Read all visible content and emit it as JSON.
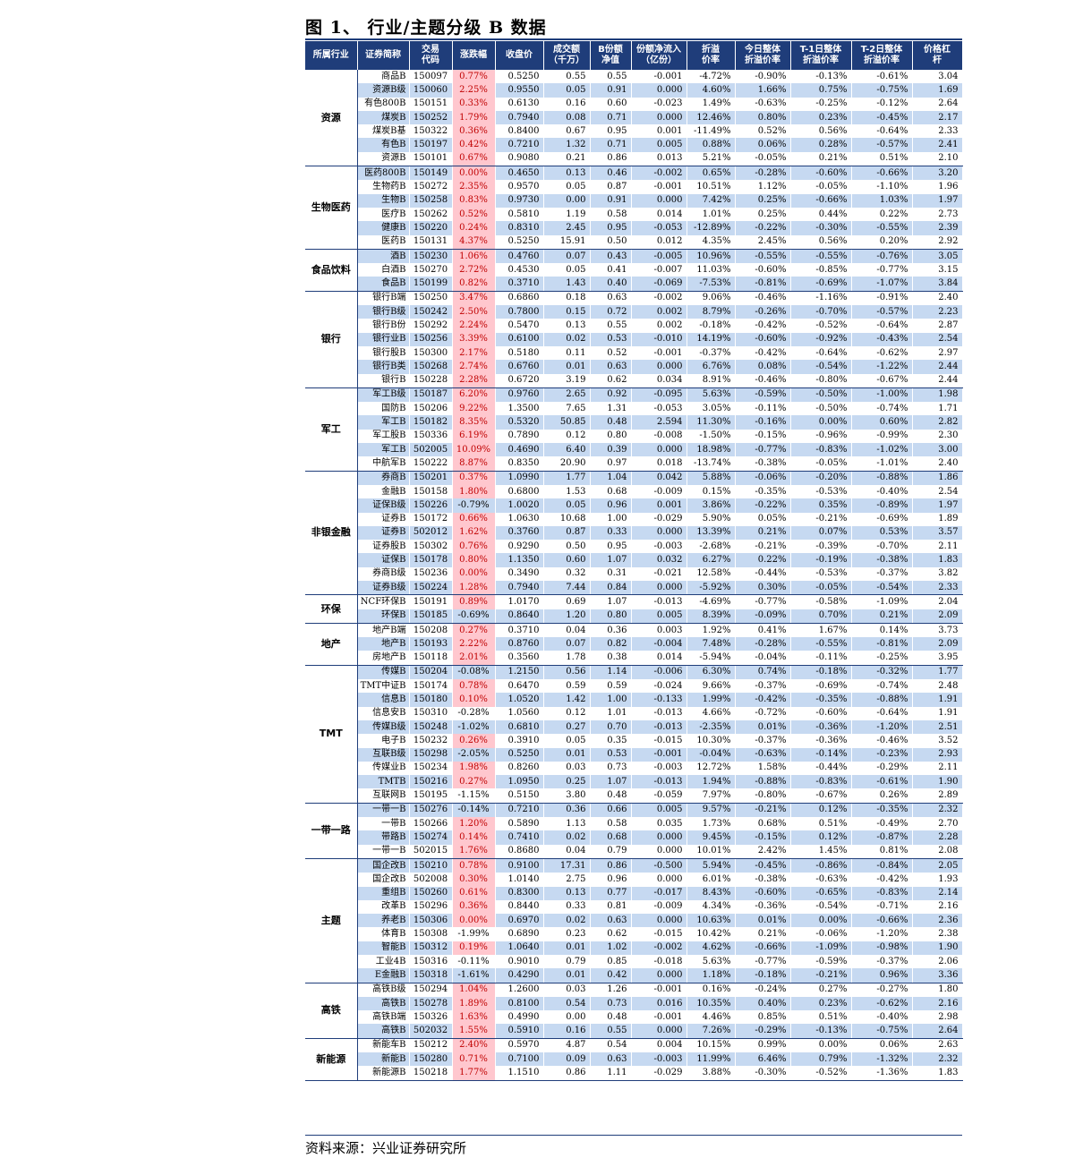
{
  "title": "图 1、 行业/主题分级 B 数据",
  "source": "资料来源：兴业证券研究所",
  "colors": {
    "header_bg": "#1f3d7a",
    "band": "#c6d9f1",
    "up_bg": "#ffc7ce",
    "up_text": "#c00000"
  },
  "headers": [
    "所属行业",
    "证券简称",
    "交易\n代码",
    "涨跌幅",
    "收盘价",
    "成交额\n（千万）",
    "B份额\n净值",
    "份额净流入\n（亿份）",
    "折溢\n价率",
    "今日整体\n折溢价率",
    "T-1日整体\n折溢价率",
    "T-2日整体\n折溢价率",
    "价格杠\n杆"
  ],
  "groups": [
    {
      "industry": "资源",
      "rows": [
        [
          "商品B",
          "150097",
          "0.77%",
          "0.5250",
          "0.55",
          "0.55",
          "-0.001",
          "-4.72%",
          "-0.90%",
          "-0.13%",
          "-0.61%",
          "3.04"
        ],
        [
          "资源B级",
          "150060",
          "2.25%",
          "0.9550",
          "0.05",
          "0.91",
          "0.000",
          "4.60%",
          "1.66%",
          "0.75%",
          "-0.75%",
          "1.69"
        ],
        [
          "有色800B",
          "150151",
          "0.33%",
          "0.6130",
          "0.16",
          "0.60",
          "-0.023",
          "1.49%",
          "-0.63%",
          "-0.25%",
          "-0.12%",
          "2.64"
        ],
        [
          "煤炭B",
          "150252",
          "1.79%",
          "0.7940",
          "0.08",
          "0.71",
          "0.000",
          "12.46%",
          "0.80%",
          "0.23%",
          "-0.45%",
          "2.17"
        ],
        [
          "煤炭B基",
          "150322",
          "0.36%",
          "0.8400",
          "0.67",
          "0.95",
          "0.001",
          "-11.49%",
          "0.52%",
          "0.56%",
          "-0.64%",
          "2.33"
        ],
        [
          "有色B",
          "150197",
          "0.42%",
          "0.7210",
          "1.32",
          "0.71",
          "0.005",
          "0.88%",
          "0.06%",
          "0.28%",
          "-0.57%",
          "2.41"
        ],
        [
          "资源B",
          "150101",
          "0.67%",
          "0.9080",
          "0.21",
          "0.86",
          "0.013",
          "5.21%",
          "-0.05%",
          "0.21%",
          "0.51%",
          "2.10"
        ]
      ]
    },
    {
      "industry": "生物医药",
      "rows": [
        [
          "医药800B",
          "150149",
          "0.00%",
          "0.4650",
          "0.13",
          "0.46",
          "-0.002",
          "0.65%",
          "-0.28%",
          "-0.60%",
          "-0.66%",
          "3.20"
        ],
        [
          "生物药B",
          "150272",
          "2.35%",
          "0.9570",
          "0.05",
          "0.87",
          "-0.001",
          "10.51%",
          "1.12%",
          "-0.05%",
          "-1.10%",
          "1.96"
        ],
        [
          "生物B",
          "150258",
          "0.83%",
          "0.9730",
          "0.00",
          "0.91",
          "0.000",
          "7.42%",
          "0.25%",
          "-0.66%",
          "1.03%",
          "1.97"
        ],
        [
          "医疗B",
          "150262",
          "0.52%",
          "0.5810",
          "1.19",
          "0.58",
          "0.014",
          "1.01%",
          "0.25%",
          "0.44%",
          "0.22%",
          "2.73"
        ],
        [
          "健康B",
          "150220",
          "0.24%",
          "0.8310",
          "2.45",
          "0.95",
          "-0.053",
          "-12.89%",
          "-0.22%",
          "-0.30%",
          "-0.55%",
          "2.39"
        ],
        [
          "医药B",
          "150131",
          "4.37%",
          "0.5250",
          "15.91",
          "0.50",
          "0.012",
          "4.35%",
          "2.45%",
          "0.56%",
          "0.20%",
          "2.92"
        ]
      ]
    },
    {
      "industry": "食品饮料",
      "rows": [
        [
          "酒B",
          "150230",
          "1.06%",
          "0.4760",
          "0.07",
          "0.43",
          "-0.005",
          "10.96%",
          "-0.55%",
          "-0.55%",
          "-0.76%",
          "3.05"
        ],
        [
          "白酒B",
          "150270",
          "2.72%",
          "0.4530",
          "0.05",
          "0.41",
          "-0.007",
          "11.03%",
          "-0.60%",
          "-0.85%",
          "-0.77%",
          "3.15"
        ],
        [
          "食品B",
          "150199",
          "0.82%",
          "0.3710",
          "1.43",
          "0.40",
          "-0.069",
          "-7.53%",
          "-0.81%",
          "-0.69%",
          "-1.07%",
          "3.84"
        ]
      ]
    },
    {
      "industry": "银行",
      "rows": [
        [
          "银行B端",
          "150250",
          "3.47%",
          "0.6860",
          "0.18",
          "0.63",
          "-0.002",
          "9.06%",
          "-0.46%",
          "-1.16%",
          "-0.91%",
          "2.40"
        ],
        [
          "银行B级",
          "150242",
          "2.50%",
          "0.7800",
          "0.15",
          "0.72",
          "0.002",
          "8.79%",
          "-0.26%",
          "-0.70%",
          "-0.57%",
          "2.23"
        ],
        [
          "银行B份",
          "150292",
          "2.24%",
          "0.5470",
          "0.13",
          "0.55",
          "0.002",
          "-0.18%",
          "-0.42%",
          "-0.52%",
          "-0.64%",
          "2.87"
        ],
        [
          "银行业B",
          "150256",
          "3.39%",
          "0.6100",
          "0.02",
          "0.53",
          "-0.010",
          "14.19%",
          "-0.60%",
          "-0.92%",
          "-0.43%",
          "2.54"
        ],
        [
          "银行股B",
          "150300",
          "2.17%",
          "0.5180",
          "0.11",
          "0.52",
          "-0.001",
          "-0.37%",
          "-0.42%",
          "-0.64%",
          "-0.62%",
          "2.97"
        ],
        [
          "银行B类",
          "150268",
          "2.74%",
          "0.6760",
          "0.01",
          "0.63",
          "0.000",
          "6.76%",
          "0.08%",
          "-0.54%",
          "-1.22%",
          "2.44"
        ],
        [
          "银行B",
          "150228",
          "2.28%",
          "0.6720",
          "3.19",
          "0.62",
          "0.034",
          "8.91%",
          "-0.46%",
          "-0.80%",
          "-0.67%",
          "2.44"
        ]
      ]
    },
    {
      "industry": "军工",
      "rows": [
        [
          "军工B级",
          "150187",
          "6.20%",
          "0.9760",
          "2.65",
          "0.92",
          "-0.095",
          "5.63%",
          "-0.59%",
          "-0.50%",
          "-1.00%",
          "1.98"
        ],
        [
          "国防B",
          "150206",
          "9.22%",
          "1.3500",
          "7.65",
          "1.31",
          "-0.053",
          "3.05%",
          "-0.11%",
          "-0.50%",
          "-0.74%",
          "1.71"
        ],
        [
          "军工B",
          "150182",
          "8.35%",
          "0.5320",
          "50.85",
          "0.48",
          "2.594",
          "11.30%",
          "-0.16%",
          "0.00%",
          "0.60%",
          "2.82"
        ],
        [
          "军工股B",
          "150336",
          "6.19%",
          "0.7890",
          "0.12",
          "0.80",
          "-0.008",
          "-1.50%",
          "-0.15%",
          "-0.96%",
          "-0.99%",
          "2.30"
        ],
        [
          "军工B",
          "502005",
          "10.09%",
          "0.4690",
          "6.40",
          "0.39",
          "0.000",
          "18.98%",
          "-0.77%",
          "-0.83%",
          "-1.02%",
          "3.00"
        ],
        [
          "中航军B",
          "150222",
          "8.87%",
          "0.8350",
          "20.90",
          "0.97",
          "0.018",
          "-13.74%",
          "-0.38%",
          "-0.05%",
          "-1.01%",
          "2.40"
        ]
      ]
    },
    {
      "industry": "非银金融",
      "rows": [
        [
          "券商B",
          "150201",
          "0.37%",
          "1.0990",
          "1.77",
          "1.04",
          "0.042",
          "5.88%",
          "-0.06%",
          "-0.20%",
          "-0.88%",
          "1.86"
        ],
        [
          "金融B",
          "150158",
          "1.80%",
          "0.6800",
          "1.53",
          "0.68",
          "-0.009",
          "0.15%",
          "-0.35%",
          "-0.53%",
          "-0.40%",
          "2.54"
        ],
        [
          "证保B级",
          "150226",
          "-0.79%",
          "1.0020",
          "0.05",
          "0.96",
          "0.001",
          "3.86%",
          "-0.22%",
          "0.35%",
          "-0.89%",
          "1.97"
        ],
        [
          "证券B",
          "150172",
          "0.66%",
          "1.0630",
          "10.68",
          "1.00",
          "-0.029",
          "5.90%",
          "0.05%",
          "-0.21%",
          "-0.69%",
          "1.89"
        ],
        [
          "证券B",
          "502012",
          "1.62%",
          "0.3760",
          "0.87",
          "0.33",
          "0.000",
          "13.39%",
          "0.21%",
          "0.07%",
          "0.53%",
          "3.57"
        ],
        [
          "证券股B",
          "150302",
          "0.76%",
          "0.9290",
          "0.50",
          "0.95",
          "-0.003",
          "-2.68%",
          "-0.21%",
          "-0.39%",
          "-0.70%",
          "2.11"
        ],
        [
          "证保B",
          "150178",
          "0.80%",
          "1.1350",
          "0.60",
          "1.07",
          "0.032",
          "6.27%",
          "0.22%",
          "-0.19%",
          "-0.38%",
          "1.83"
        ],
        [
          "券商B级",
          "150236",
          "0.00%",
          "0.3490",
          "0.32",
          "0.31",
          "-0.021",
          "12.58%",
          "-0.44%",
          "-0.53%",
          "-0.37%",
          "3.82"
        ],
        [
          "证券B级",
          "150224",
          "1.28%",
          "0.7940",
          "7.44",
          "0.84",
          "0.000",
          "-5.92%",
          "0.30%",
          "-0.05%",
          "-0.54%",
          "2.33"
        ]
      ]
    },
    {
      "industry": "环保",
      "rows": [
        [
          "NCF环保B",
          "150191",
          "0.89%",
          "1.0170",
          "0.69",
          "1.07",
          "-0.013",
          "-4.69%",
          "-0.77%",
          "-0.58%",
          "-1.09%",
          "2.04"
        ],
        [
          "环保B",
          "150185",
          "-0.69%",
          "0.8640",
          "1.20",
          "0.80",
          "0.005",
          "8.39%",
          "-0.09%",
          "0.70%",
          "0.21%",
          "2.09"
        ]
      ]
    },
    {
      "industry": "地产",
      "rows": [
        [
          "地产B端",
          "150208",
          "0.27%",
          "0.3710",
          "0.04",
          "0.36",
          "0.003",
          "1.92%",
          "0.41%",
          "1.67%",
          "0.14%",
          "3.73"
        ],
        [
          "地产B",
          "150193",
          "2.22%",
          "0.8760",
          "0.07",
          "0.82",
          "-0.004",
          "7.48%",
          "-0.28%",
          "-0.55%",
          "-0.81%",
          "2.09"
        ],
        [
          "房地产B",
          "150118",
          "2.01%",
          "0.3560",
          "1.78",
          "0.38",
          "0.014",
          "-5.94%",
          "-0.04%",
          "-0.11%",
          "-0.25%",
          "3.95"
        ]
      ]
    },
    {
      "industry": "TMT",
      "rows": [
        [
          "传媒B",
          "150204",
          "-0.08%",
          "1.2150",
          "0.56",
          "1.14",
          "-0.006",
          "6.30%",
          "0.74%",
          "-0.18%",
          "-0.32%",
          "1.77"
        ],
        [
          "TMT中证B",
          "150174",
          "0.78%",
          "0.6470",
          "0.59",
          "0.59",
          "-0.024",
          "9.66%",
          "-0.37%",
          "-0.69%",
          "-0.74%",
          "2.48"
        ],
        [
          "信息B",
          "150180",
          "0.10%",
          "1.0520",
          "1.42",
          "1.00",
          "-0.133",
          "1.99%",
          "-0.42%",
          "-0.35%",
          "-0.88%",
          "1.91"
        ],
        [
          "信息安B",
          "150310",
          "-0.28%",
          "1.0560",
          "0.12",
          "1.01",
          "-0.013",
          "4.66%",
          "-0.72%",
          "-0.60%",
          "-0.64%",
          "1.91"
        ],
        [
          "传媒B级",
          "150248",
          "-1.02%",
          "0.6810",
          "0.27",
          "0.70",
          "-0.013",
          "-2.35%",
          "0.01%",
          "-0.36%",
          "-1.20%",
          "2.51"
        ],
        [
          "电子B",
          "150232",
          "0.26%",
          "0.3910",
          "0.05",
          "0.35",
          "-0.015",
          "10.30%",
          "-0.37%",
          "-0.36%",
          "-0.46%",
          "3.52"
        ],
        [
          "互联B级",
          "150298",
          "-2.05%",
          "0.5250",
          "0.01",
          "0.53",
          "-0.001",
          "-0.04%",
          "-0.63%",
          "-0.14%",
          "-0.23%",
          "2.93"
        ],
        [
          "传媒业B",
          "150234",
          "1.98%",
          "0.8260",
          "0.03",
          "0.73",
          "-0.003",
          "12.72%",
          "1.58%",
          "-0.44%",
          "-0.29%",
          "2.11"
        ],
        [
          "TMTB",
          "150216",
          "0.27%",
          "1.0950",
          "0.25",
          "1.07",
          "-0.013",
          "1.94%",
          "-0.88%",
          "-0.83%",
          "-0.61%",
          "1.90"
        ],
        [
          "互联网B",
          "150195",
          "-1.15%",
          "0.5150",
          "3.80",
          "0.48",
          "-0.059",
          "7.97%",
          "-0.80%",
          "-0.67%",
          "0.26%",
          "2.89"
        ]
      ]
    },
    {
      "industry": "一带一路",
      "rows": [
        [
          "一带一B",
          "150276",
          "-0.14%",
          "0.7210",
          "0.36",
          "0.66",
          "0.005",
          "9.57%",
          "-0.21%",
          "0.12%",
          "-0.35%",
          "2.32"
        ],
        [
          "一带B",
          "150266",
          "1.20%",
          "0.5890",
          "1.13",
          "0.58",
          "0.035",
          "1.73%",
          "0.68%",
          "0.51%",
          "-0.49%",
          "2.70"
        ],
        [
          "带路B",
          "150274",
          "0.14%",
          "0.7410",
          "0.02",
          "0.68",
          "0.000",
          "9.45%",
          "-0.15%",
          "0.12%",
          "-0.87%",
          "2.28"
        ],
        [
          "一带一B",
          "502015",
          "1.76%",
          "0.8680",
          "0.04",
          "0.79",
          "0.000",
          "10.01%",
          "2.42%",
          "1.45%",
          "0.81%",
          "2.08"
        ]
      ]
    },
    {
      "industry": "主题",
      "rows": [
        [
          "国企改B",
          "150210",
          "0.78%",
          "0.9100",
          "17.31",
          "0.86",
          "-0.500",
          "5.94%",
          "-0.45%",
          "-0.86%",
          "-0.84%",
          "2.05"
        ],
        [
          "国企改B",
          "502008",
          "0.30%",
          "1.0140",
          "2.75",
          "0.96",
          "0.000",
          "6.01%",
          "-0.38%",
          "-0.63%",
          "-0.42%",
          "1.93"
        ],
        [
          "重组B",
          "150260",
          "0.61%",
          "0.8300",
          "0.13",
          "0.77",
          "-0.017",
          "8.43%",
          "-0.60%",
          "-0.65%",
          "-0.83%",
          "2.14"
        ],
        [
          "改革B",
          "150296",
          "0.36%",
          "0.8440",
          "0.33",
          "0.81",
          "-0.009",
          "4.34%",
          "-0.36%",
          "-0.54%",
          "-0.71%",
          "2.16"
        ],
        [
          "养老B",
          "150306",
          "0.00%",
          "0.6970",
          "0.02",
          "0.63",
          "0.000",
          "10.63%",
          "0.01%",
          "0.00%",
          "-0.66%",
          "2.36"
        ],
        [
          "体育B",
          "150308",
          "-1.99%",
          "0.6890",
          "0.23",
          "0.62",
          "-0.015",
          "10.42%",
          "0.21%",
          "-0.06%",
          "-1.20%",
          "2.38"
        ],
        [
          "智能B",
          "150312",
          "0.19%",
          "1.0640",
          "0.01",
          "1.02",
          "-0.002",
          "4.62%",
          "-0.66%",
          "-1.09%",
          "-0.98%",
          "1.90"
        ],
        [
          "工业4B",
          "150316",
          "-0.11%",
          "0.9010",
          "0.79",
          "0.85",
          "-0.018",
          "5.63%",
          "-0.77%",
          "-0.59%",
          "-0.37%",
          "2.06"
        ],
        [
          "E金融B",
          "150318",
          "-1.61%",
          "0.4290",
          "0.01",
          "0.42",
          "0.000",
          "1.18%",
          "-0.18%",
          "-0.21%",
          "0.96%",
          "3.36"
        ]
      ]
    },
    {
      "industry": "高铁",
      "rows": [
        [
          "高铁B级",
          "150294",
          "1.04%",
          "1.2600",
          "0.03",
          "1.26",
          "-0.001",
          "0.16%",
          "-0.24%",
          "0.27%",
          "-0.27%",
          "1.80"
        ],
        [
          "高铁B",
          "150278",
          "1.89%",
          "0.8100",
          "0.54",
          "0.73",
          "0.016",
          "10.35%",
          "0.40%",
          "0.23%",
          "-0.62%",
          "2.16"
        ],
        [
          "高铁B端",
          "150326",
          "1.63%",
          "0.4990",
          "0.00",
          "0.48",
          "-0.001",
          "4.46%",
          "0.85%",
          "0.51%",
          "-0.40%",
          "2.98"
        ],
        [
          "高铁B",
          "502032",
          "1.55%",
          "0.5910",
          "0.16",
          "0.55",
          "0.000",
          "7.26%",
          "-0.29%",
          "-0.13%",
          "-0.75%",
          "2.64"
        ]
      ]
    },
    {
      "industry": "新能源",
      "rows": [
        [
          "新能车B",
          "150212",
          "2.40%",
          "0.5970",
          "4.87",
          "0.54",
          "0.004",
          "10.15%",
          "0.99%",
          "0.00%",
          "0.06%",
          "2.63"
        ],
        [
          "新能B",
          "150280",
          "0.71%",
          "0.7100",
          "0.09",
          "0.63",
          "-0.003",
          "11.99%",
          "6.46%",
          "0.79%",
          "-1.32%",
          "2.32"
        ],
        [
          "新能源B",
          "150218",
          "1.77%",
          "1.1510",
          "0.86",
          "1.11",
          "-0.029",
          "3.88%",
          "-0.30%",
          "-0.52%",
          "-1.36%",
          "1.83"
        ]
      ]
    }
  ]
}
